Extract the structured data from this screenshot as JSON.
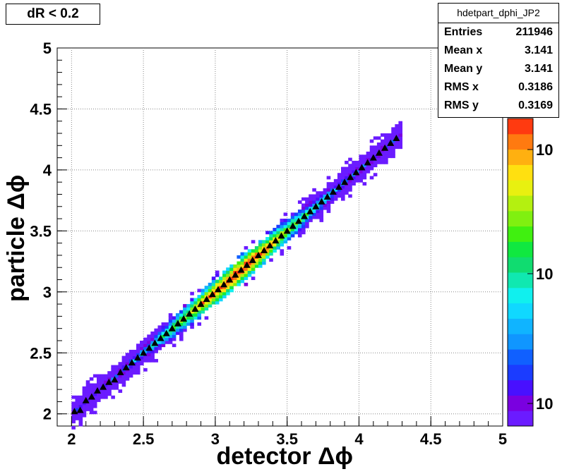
{
  "title": "dR < 0.2",
  "stats": {
    "name": "hdetpart_dphi_JP2",
    "rows": [
      {
        "label": "Entries",
        "value": "211946"
      },
      {
        "label": "Mean x",
        "value": "3.141"
      },
      {
        "label": "Mean y",
        "value": "3.141"
      },
      {
        "label": "RMS x",
        "value": "0.3186"
      },
      {
        "label": "RMS y",
        "value": "0.3169"
      }
    ]
  },
  "chart_data": {
    "type": "heatmap",
    "xlabel": "detector Δϕ",
    "ylabel": "particle Δϕ",
    "xlim": [
      1.9,
      5.0
    ],
    "ylim": [
      1.9,
      5.0
    ],
    "x_ticks": [
      "2",
      "2.5",
      "3",
      "3.5",
      "4",
      "4.5",
      "5"
    ],
    "y_ticks": [
      "2",
      "2.5",
      "3",
      "3.5",
      "4",
      "4.5",
      "5"
    ],
    "grid": true,
    "colorbar": {
      "scale": "log",
      "tick_labels": [
        "10",
        "10",
        "10"
      ]
    },
    "heatmap_band": {
      "x_start": 2.0,
      "x_end": 4.28,
      "relation": "y ≈ x",
      "peak_at": 3.14
    },
    "profile_markers": {
      "marker": "black triangle",
      "x": [
        2.02,
        2.06,
        2.1,
        2.14,
        2.18,
        2.22,
        2.26,
        2.3,
        2.34,
        2.38,
        2.42,
        2.46,
        2.5,
        2.54,
        2.58,
        2.62,
        2.66,
        2.7,
        2.74,
        2.78,
        2.82,
        2.86,
        2.9,
        2.94,
        2.98,
        3.02,
        3.06,
        3.1,
        3.14,
        3.18,
        3.22,
        3.26,
        3.3,
        3.34,
        3.38,
        3.42,
        3.46,
        3.5,
        3.54,
        3.58,
        3.62,
        3.66,
        3.7,
        3.74,
        3.78,
        3.82,
        3.86,
        3.9,
        3.94,
        3.98,
        4.02,
        4.06,
        4.1,
        4.14,
        4.18,
        4.22,
        4.26
      ],
      "y": [
        2.02,
        2.03,
        2.11,
        2.14,
        2.19,
        2.22,
        2.26,
        2.28,
        2.34,
        2.38,
        2.42,
        2.46,
        2.5,
        2.54,
        2.58,
        2.62,
        2.66,
        2.7,
        2.74,
        2.78,
        2.82,
        2.86,
        2.9,
        2.94,
        2.98,
        3.02,
        3.06,
        3.1,
        3.14,
        3.18,
        3.22,
        3.26,
        3.3,
        3.34,
        3.38,
        3.42,
        3.46,
        3.5,
        3.54,
        3.58,
        3.62,
        3.66,
        3.7,
        3.74,
        3.78,
        3.82,
        3.86,
        3.9,
        3.94,
        3.98,
        4.02,
        4.06,
        4.1,
        4.14,
        4.18,
        4.22,
        4.26
      ]
    }
  }
}
